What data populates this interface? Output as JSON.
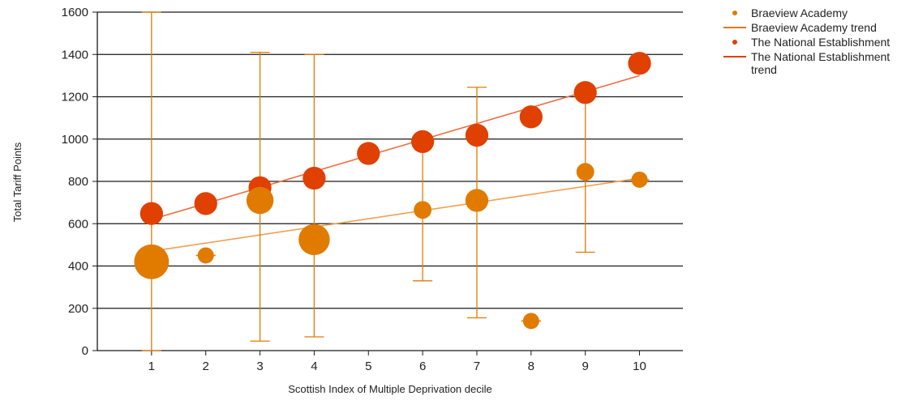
{
  "chart_data": {
    "type": "scatter",
    "xlabel": "Scottish Index of Multiple Deprivation decile",
    "ylabel": "Total Tariff Points",
    "xlim": [
      0,
      10.8
    ],
    "ylim": [
      0,
      1600
    ],
    "xticks": [
      "1",
      "2",
      "3",
      "4",
      "5",
      "6",
      "7",
      "8",
      "9",
      "10"
    ],
    "yticks": [
      "0",
      "200",
      "400",
      "600",
      "800",
      "1000",
      "1200",
      "1400",
      "1600"
    ],
    "grid": "horizontal",
    "legend_position": "right",
    "bubbles": true,
    "series": [
      {
        "name": "Braeview Academy",
        "color": "#e07b00",
        "points": [
          {
            "x": 1,
            "y": 420,
            "size": 4.6,
            "err_low": 0,
            "err_high": 1600
          },
          {
            "x": 2,
            "y": 450,
            "size": 1.0,
            "err_low": 450,
            "err_high": 450
          },
          {
            "x": 3,
            "y": 710,
            "size": 2.8,
            "err_low": 45,
            "err_high": 1410
          },
          {
            "x": 4,
            "y": 525,
            "size": 3.7,
            "err_low": 65,
            "err_high": 1400
          },
          {
            "x": 6,
            "y": 665,
            "size": 1.2,
            "err_low": 330,
            "err_high": 1000
          },
          {
            "x": 7,
            "y": 710,
            "size": 2.0,
            "err_low": 155,
            "err_high": 1245
          },
          {
            "x": 8,
            "y": 140,
            "size": 1.0,
            "err_low": 140,
            "err_high": 140
          },
          {
            "x": 9,
            "y": 845,
            "size": 1.2,
            "err_low": 465,
            "err_high": 1220
          },
          {
            "x": 10,
            "y": 808,
            "size": 1.0,
            "err_low": 808,
            "err_high": 808
          }
        ]
      },
      {
        "name": "The National Establishment",
        "color": "#e04000",
        "points": [
          {
            "x": 1,
            "y": 648,
            "size": 2.0
          },
          {
            "x": 2,
            "y": 695,
            "size": 2.0
          },
          {
            "x": 3,
            "y": 770,
            "size": 2.0
          },
          {
            "x": 4,
            "y": 815,
            "size": 2.0
          },
          {
            "x": 5,
            "y": 932,
            "size": 2.0
          },
          {
            "x": 6,
            "y": 988,
            "size": 2.0
          },
          {
            "x": 7,
            "y": 1018,
            "size": 2.0
          },
          {
            "x": 8,
            "y": 1105,
            "size": 2.0
          },
          {
            "x": 9,
            "y": 1220,
            "size": 2.0
          },
          {
            "x": 10,
            "y": 1358,
            "size": 2.0
          }
        ]
      }
    ],
    "trends": [
      {
        "name": "Braeview Academy trend",
        "color": "#f0a050",
        "from": [
          1,
          470
        ],
        "to": [
          10,
          815
        ]
      },
      {
        "name": "The National Establishment trend",
        "color": "#ef6a40",
        "from": [
          1,
          620
        ],
        "to": [
          10,
          1300
        ]
      }
    ]
  },
  "legend": [
    {
      "label": "Braeview Academy",
      "kind": "dot",
      "color": "#e07b00"
    },
    {
      "label": "Braeview Academy trend",
      "kind": "line",
      "color": "#e07b00"
    },
    {
      "label": "The National Establishment",
      "kind": "dot",
      "color": "#e04000"
    },
    {
      "label": "The National Establishment trend",
      "kind": "line",
      "color": "#e04000"
    }
  ]
}
